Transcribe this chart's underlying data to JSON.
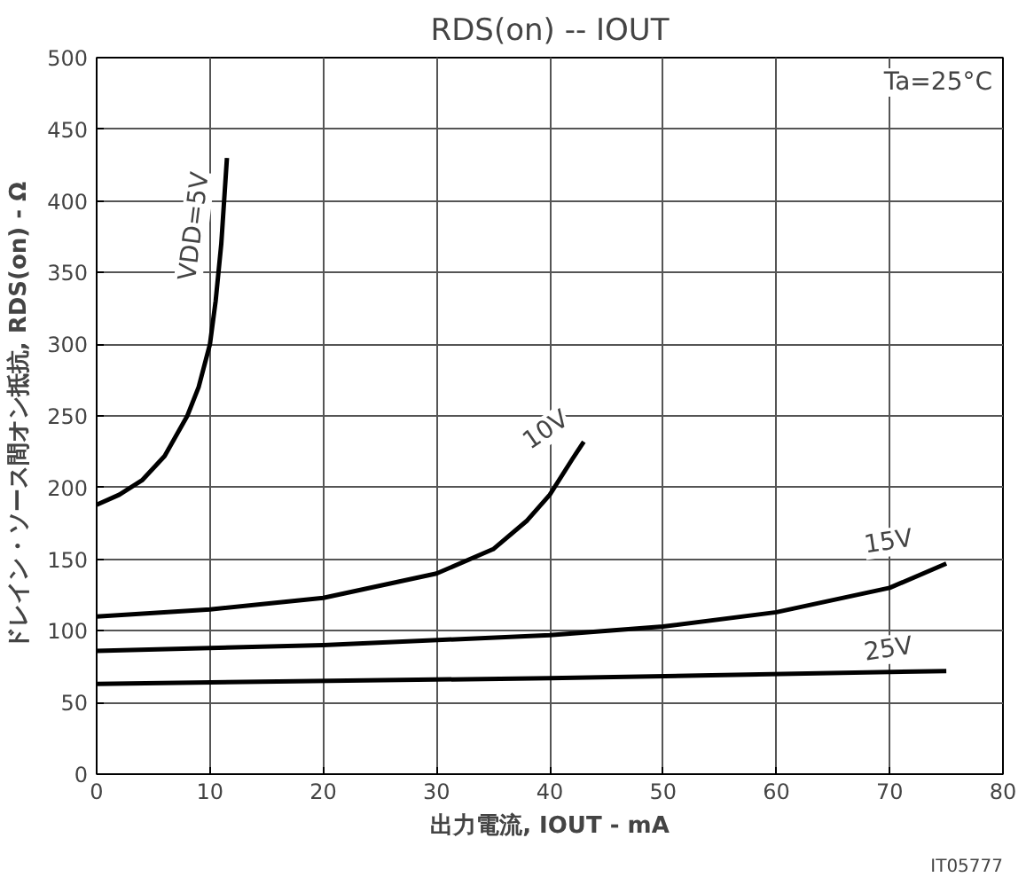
{
  "chart_data": {
    "type": "line",
    "title": "RDS(on) -- IOUT",
    "xlabel": "出力電流, IOUT - mA",
    "ylabel": "ドレイン・ソース間オン抵抗, RDS(on) - Ω",
    "annotations": [
      "Ta=25°C",
      "IT05777"
    ],
    "xlim": [
      0,
      80
    ],
    "ylim": [
      0,
      500
    ],
    "xticks": [
      0,
      10,
      20,
      30,
      40,
      50,
      60,
      70,
      80
    ],
    "yticks": [
      0,
      50,
      100,
      150,
      200,
      250,
      300,
      350,
      400,
      450,
      500
    ],
    "grid": true,
    "marker": "none",
    "line_style": "solid",
    "series": [
      {
        "name": "VDD=5V",
        "color": "#000000",
        "x": [
          0,
          2,
          4,
          6,
          8,
          9,
          10,
          10.5,
          11,
          11.5
        ],
        "values": [
          188,
          195,
          205,
          222,
          250,
          270,
          300,
          330,
          370,
          430
        ]
      },
      {
        "name": "10V",
        "color": "#000000",
        "x": [
          0,
          10,
          20,
          30,
          35,
          38,
          40,
          42,
          43
        ],
        "values": [
          110,
          115,
          123,
          140,
          157,
          177,
          195,
          220,
          232
        ]
      },
      {
        "name": "15V",
        "color": "#000000",
        "x": [
          0,
          20,
          40,
          50,
          60,
          70,
          75
        ],
        "values": [
          86,
          90,
          97,
          103,
          113,
          130,
          147
        ]
      },
      {
        "name": "25V",
        "color": "#000000",
        "x": [
          0,
          40,
          75
        ],
        "values": [
          63,
          67,
          72
        ]
      }
    ]
  }
}
